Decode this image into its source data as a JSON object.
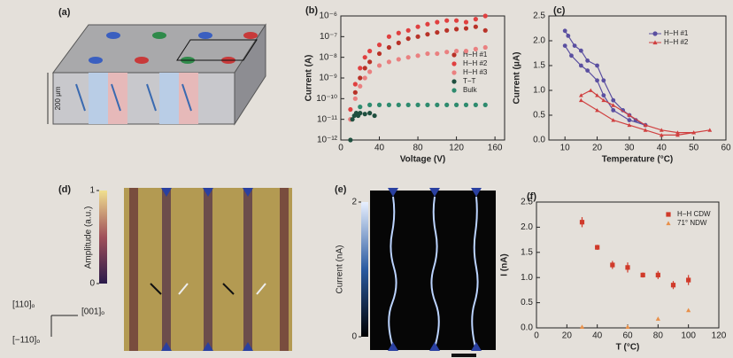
{
  "panel_a": {
    "label": "(a)",
    "thickness": "200 μm"
  },
  "panel_d": {
    "label": "(d)",
    "colorbar_title": "Amplitude (a.u.)",
    "colorbar_ticks": [
      0,
      1
    ],
    "directions": [
      "[110]ₒ",
      "[001]ₒ",
      "[−110]ₒ"
    ]
  },
  "panel_e": {
    "label": "(e)",
    "colorbar_title": "Current (nA)",
    "colorbar_ticks": [
      0,
      2
    ]
  },
  "chart_data": [
    {
      "type": "scatter",
      "panel_label": "(b)",
      "xlabel": "Voltage (V)",
      "ylabel": "Current (A)",
      "ylog": true,
      "xlim": [
        0,
        170
      ],
      "xticks": [
        0,
        40,
        80,
        120,
        160
      ],
      "ylim": [
        1e-12,
        1e-06
      ],
      "yticks": [
        {
          "value": 1e-12,
          "label": "10⁻¹²"
        },
        {
          "value": 1e-11,
          "label": "10⁻¹¹"
        },
        {
          "value": 1e-10,
          "label": "10⁻¹⁰"
        },
        {
          "value": 1e-09,
          "label": "10⁻⁹"
        },
        {
          "value": 1e-08,
          "label": "10⁻⁸"
        },
        {
          "value": 1e-07,
          "label": "10⁻⁷"
        },
        {
          "value": 1e-06,
          "label": "10⁻⁶"
        }
      ],
      "series": [
        {
          "name": "H−H #1",
          "color": "#b83228",
          "marker": "circle",
          "x": [
            10,
            15,
            20,
            25,
            30,
            40,
            50,
            60,
            70,
            80,
            90,
            100,
            110,
            120,
            130,
            140,
            150
          ],
          "values": [
            1e-11,
            2e-10,
            1e-09,
            3e-09,
            6e-09,
            1.5e-08,
            3e-08,
            5e-08,
            8e-08,
            1e-07,
            1.3e-07,
            1.6e-07,
            2e-07,
            2.3e-07,
            2.5e-07,
            3e-07,
            2e-07
          ]
        },
        {
          "name": "H−H #2",
          "color": "#e04040",
          "marker": "circle",
          "x": [
            10,
            15,
            20,
            25,
            30,
            40,
            50,
            60,
            70,
            80,
            90,
            100,
            110,
            120,
            130,
            140,
            150
          ],
          "values": [
            3e-11,
            5e-10,
            3e-09,
            1e-08,
            2e-08,
            4e-08,
            1e-07,
            1.5e-07,
            2e-07,
            3e-07,
            4e-07,
            5e-07,
            6e-07,
            6e-07,
            5e-07,
            7e-07,
            1e-06
          ]
        },
        {
          "name": "H−H #3",
          "color": "#ea8080",
          "marker": "circle",
          "x": [
            10,
            15,
            20,
            25,
            30,
            40,
            50,
            60,
            70,
            80,
            90,
            100,
            110,
            120,
            130,
            140,
            150
          ],
          "values": [
            1e-11,
            1e-10,
            4e-10,
            1e-09,
            2e-09,
            4e-09,
            6e-09,
            8e-09,
            1e-08,
            1.2e-08,
            1.5e-08,
            1.5e-08,
            1.8e-08,
            2e-08,
            2e-08,
            2.5e-08,
            3e-08
          ]
        },
        {
          "name": "T−T",
          "color": "#1f4f3f",
          "marker": "circle",
          "x": [
            10,
            12,
            14,
            16,
            18,
            20,
            25,
            30,
            35
          ],
          "values": [
            1e-12,
            1e-11,
            1.5e-11,
            2e-11,
            1.5e-11,
            2e-11,
            1.8e-11,
            2e-11,
            1.5e-11
          ]
        },
        {
          "name": "Bulk",
          "color": "#2e8b6e",
          "marker": "circle",
          "x": [
            20,
            30,
            40,
            50,
            60,
            70,
            80,
            90,
            100,
            110,
            120,
            130,
            140,
            150
          ],
          "values": [
            4e-11,
            5e-11,
            5e-11,
            5e-11,
            5e-11,
            5e-11,
            5e-11,
            5e-11,
            5e-11,
            5e-11,
            5e-11,
            5e-11,
            5e-11,
            5e-11
          ]
        }
      ]
    },
    {
      "type": "line",
      "panel_label": "(c)",
      "xlabel": "Temperature (°C)",
      "ylabel": "Current (μA)",
      "xlim": [
        5,
        60
      ],
      "xticks": [
        10,
        20,
        30,
        40,
        50,
        60
      ],
      "ylim": [
        0,
        2.5
      ],
      "yticks": [
        {
          "value": 0,
          "label": "0.0"
        },
        0.5,
        {
          "value": 1,
          "label": "1.0"
        },
        1.5,
        {
          "value": 2,
          "label": "2.0"
        },
        2.5
      ],
      "series": [
        {
          "name": "H−H #1",
          "color": "#5a4fa0",
          "marker": "circle",
          "x": [
            10,
            11,
            13,
            15,
            17,
            20,
            22,
            25,
            28,
            30,
            32,
            35,
            30,
            25,
            22,
            20,
            17,
            15,
            12,
            10
          ],
          "values": [
            2.2,
            2.1,
            1.9,
            1.8,
            1.6,
            1.5,
            1.2,
            0.8,
            0.6,
            0.5,
            0.4,
            0.3,
            0.4,
            0.6,
            0.9,
            1.2,
            1.4,
            1.5,
            1.7,
            1.9
          ]
        },
        {
          "name": "H−H #2",
          "color": "#d04040",
          "marker": "triangle",
          "x": [
            15,
            18,
            20,
            22,
            25,
            30,
            35,
            40,
            45,
            50,
            55,
            50,
            45,
            40,
            35,
            30,
            25,
            20,
            15
          ],
          "values": [
            0.9,
            1.0,
            0.9,
            0.8,
            0.7,
            0.5,
            0.3,
            0.2,
            0.15,
            0.15,
            0.2,
            0.15,
            0.1,
            0.1,
            0.2,
            0.3,
            0.4,
            0.6,
            0.8
          ]
        }
      ]
    },
    {
      "type": "scatter",
      "panel_label": "(f)",
      "xlabel": "T (°C)",
      "ylabel": "I (nA)",
      "xlim": [
        0,
        120
      ],
      "xticks": [
        0,
        20,
        40,
        60,
        80,
        100,
        120
      ],
      "ylim": [
        0,
        2.5
      ],
      "yticks": [
        {
          "value": 0,
          "label": "0.0"
        },
        0.5,
        {
          "value": 1,
          "label": "1.0"
        },
        1.5,
        {
          "value": 2,
          "label": "2.0"
        },
        2.5
      ],
      "series": [
        {
          "name": "H−H CDW",
          "color": "#d03a2a",
          "marker": "square",
          "x": [
            30,
            40,
            50,
            60,
            70,
            80,
            90,
            100
          ],
          "values": [
            2.1,
            1.6,
            1.25,
            1.2,
            1.05,
            1.05,
            0.85,
            0.95
          ],
          "errors": [
            0.1,
            0.05,
            0.08,
            0.1,
            0.05,
            0.08,
            0.08,
            0.1
          ]
        },
        {
          "name": "71° NDW",
          "color": "#e8904a",
          "marker": "triangle",
          "x": [
            30,
            60,
            80,
            100
          ],
          "values": [
            0.02,
            0.02,
            0.18,
            0.35
          ]
        }
      ]
    }
  ]
}
